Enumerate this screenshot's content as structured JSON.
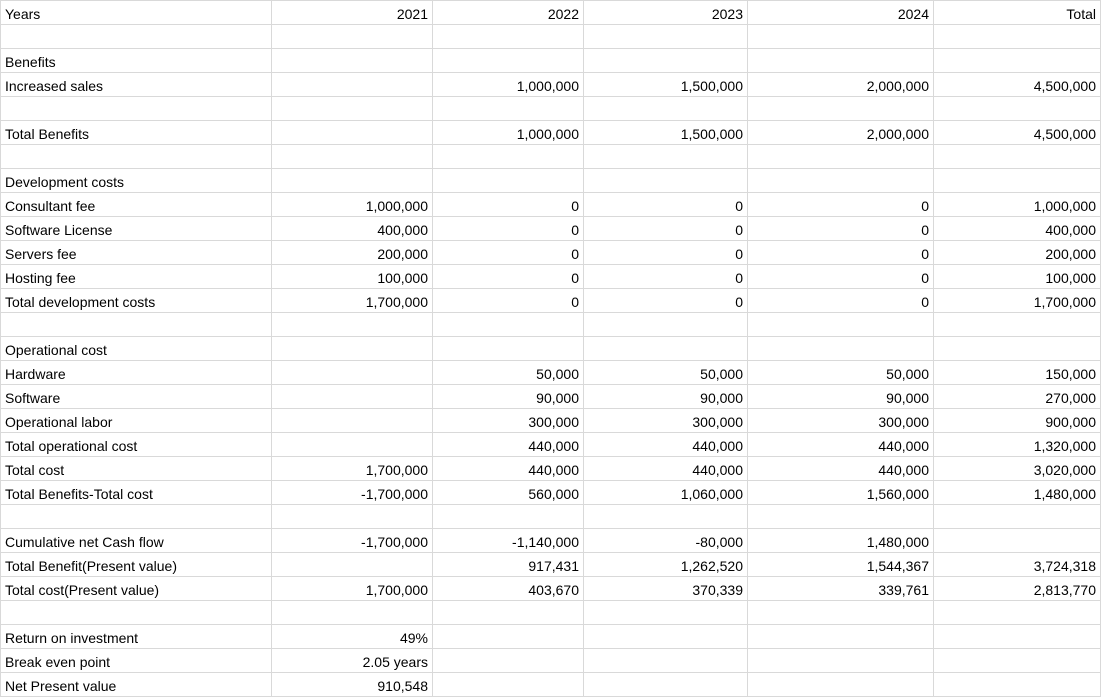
{
  "sheet": {
    "rows": [
      [
        "Years",
        "2021",
        "2022",
        "2023",
        "2024",
        "Total"
      ],
      [
        "",
        "",
        "",
        "",
        "",
        ""
      ],
      [
        "Benefits",
        "",
        "",
        "",
        "",
        ""
      ],
      [
        "Increased sales",
        "",
        "1,000,000",
        "1,500,000",
        "2,000,000",
        "4,500,000"
      ],
      [
        "",
        "",
        "",
        "",
        "",
        ""
      ],
      [
        "Total Benefits",
        "",
        "1,000,000",
        "1,500,000",
        "2,000,000",
        "4,500,000"
      ],
      [
        "",
        "",
        "",
        "",
        "",
        ""
      ],
      [
        "Development costs",
        "",
        "",
        "",
        "",
        ""
      ],
      [
        "Consultant fee",
        "1,000,000",
        "0",
        "0",
        "0",
        "1,000,000"
      ],
      [
        "Software License",
        "400,000",
        "0",
        "0",
        "0",
        "400,000"
      ],
      [
        "Servers fee",
        "200,000",
        "0",
        "0",
        "0",
        "200,000"
      ],
      [
        "Hosting fee",
        "100,000",
        "0",
        "0",
        "0",
        "100,000"
      ],
      [
        "Total development costs",
        "1,700,000",
        "0",
        "0",
        "0",
        "1,700,000"
      ],
      [
        "",
        "",
        "",
        "",
        "",
        ""
      ],
      [
        "Operational cost",
        "",
        "",
        "",
        "",
        ""
      ],
      [
        "Hardware",
        "",
        "50,000",
        "50,000",
        "50,000",
        "150,000"
      ],
      [
        "Software",
        "",
        "90,000",
        "90,000",
        "90,000",
        "270,000"
      ],
      [
        "Operational labor",
        "",
        "300,000",
        "300,000",
        "300,000",
        "900,000"
      ],
      [
        "Total operational cost",
        "",
        "440,000",
        "440,000",
        "440,000",
        "1,320,000"
      ],
      [
        "Total cost",
        "1,700,000",
        "440,000",
        "440,000",
        "440,000",
        "3,020,000"
      ],
      [
        "Total Benefits-Total cost",
        "-1,700,000",
        "560,000",
        "1,060,000",
        "1,560,000",
        "1,480,000"
      ],
      [
        "",
        "",
        "",
        "",
        "",
        ""
      ],
      [
        "Cumulative net Cash flow",
        "-1,700,000",
        "-1,140,000",
        "-80,000",
        "1,480,000",
        ""
      ],
      [
        "Total Benefit(Present value)",
        "",
        "917,431",
        "1,262,520",
        "1,544,367",
        "3,724,318"
      ],
      [
        "Total cost(Present value)",
        "1,700,000",
        "403,670",
        "370,339",
        "339,761",
        "2,813,770"
      ],
      [
        "",
        "",
        "",
        "",
        "",
        ""
      ],
      [
        "Return on investment",
        "49%",
        "",
        "",
        "",
        ""
      ],
      [
        "Break even point",
        "2.05 years",
        "",
        "",
        "",
        ""
      ],
      [
        "Net Present value",
        "910,548",
        "",
        "",
        "",
        ""
      ]
    ]
  }
}
